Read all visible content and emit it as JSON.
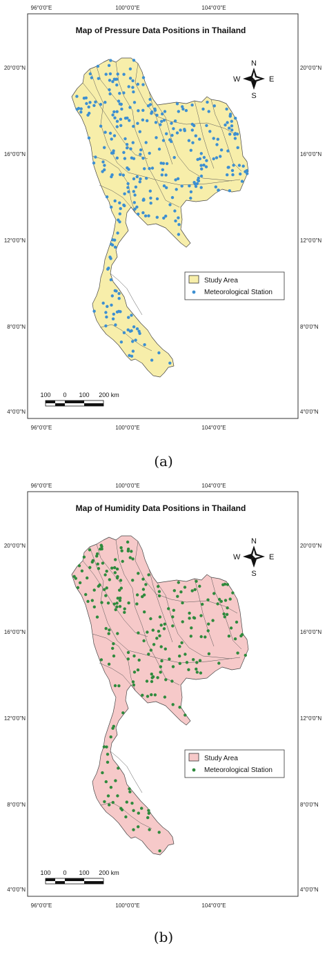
{
  "panels": [
    {
      "id": "a",
      "title": "Map of Pressure Data Positions in Thailand",
      "caption": "(a)",
      "land_color": "#f7eeaa",
      "station_color": "#3d8fd1",
      "legend": {
        "area_label": "Study Area",
        "station_label": "Meteorological Station"
      },
      "lon_ticks": [
        "96°0'0\"E",
        "100°0'0\"E",
        "104°0'0\"E"
      ],
      "lat_ticks": [
        "20°0'0\"N",
        "16°0'0\"N",
        "12°0'0\"N",
        "8°0'0\"N",
        "4°0'0\"N"
      ],
      "scale_labels": [
        "100",
        "0",
        "100",
        "200 km"
      ],
      "compass": {
        "n": "N",
        "s": "S",
        "e": "E",
        "w": "W"
      }
    },
    {
      "id": "b",
      "title": "Map of Humidity Data Positions in Thailand",
      "caption": "(b)",
      "land_color": "#f6c9c9",
      "station_color": "#2f8a3d",
      "legend": {
        "area_label": "Study Area",
        "station_label": "Meteorological Station"
      },
      "lon_ticks": [
        "96°0'0\"E",
        "100°0'0\"E",
        "104°0'0\"E"
      ],
      "lat_ticks": [
        "20°0'0\"N",
        "16°0'0\"N",
        "12°0'0\"N",
        "8°0'0\"N",
        "4°0'0\"N"
      ],
      "scale_labels": [
        "100",
        "0",
        "100",
        "200 km"
      ],
      "compass": {
        "n": "N",
        "s": "S",
        "e": "E",
        "w": "W"
      }
    }
  ]
}
